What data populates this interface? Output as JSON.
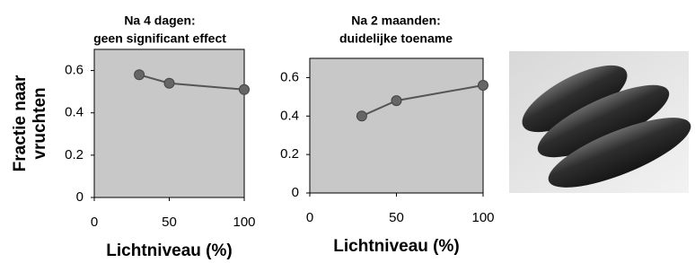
{
  "chart_data": [
    {
      "type": "line",
      "title": [
        "Na 4 dagen:",
        "geen significant effect"
      ],
      "ylabel": [
        "Fractie naar",
        "vruchten"
      ],
      "xlabel": "Lichtniveau (%)",
      "x": [
        30,
        50,
        100
      ],
      "values": [
        0.58,
        0.54,
        0.51
      ],
      "color": "#555555",
      "xlim": [
        0,
        100
      ],
      "xticks": [
        0,
        50,
        100
      ],
      "ylim": [
        0,
        0.7
      ],
      "yticks": [
        0,
        0.2,
        0.4,
        0.6
      ]
    },
    {
      "type": "line",
      "title": [
        "Na 2 maanden:",
        "duidelijke toename"
      ],
      "xlabel": "Lichtniveau (%)",
      "x": [
        30,
        50,
        100
      ],
      "values": [
        0.4,
        0.48,
        0.56
      ],
      "color": "#555555",
      "xlim": [
        0,
        100
      ],
      "xticks": [
        0,
        50,
        100
      ],
      "ylim": [
        0,
        0.7
      ],
      "yticks": [
        0,
        0.2,
        0.4,
        0.6
      ]
    }
  ]
}
